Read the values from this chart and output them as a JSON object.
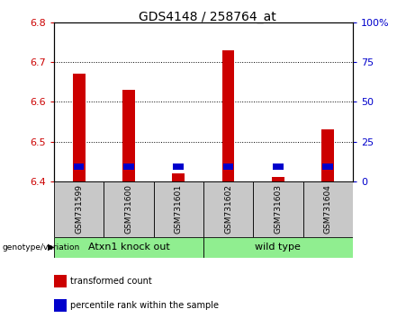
{
  "title": "GDS4148 / 258764_at",
  "samples": [
    "GSM731599",
    "GSM731600",
    "GSM731601",
    "GSM731602",
    "GSM731603",
    "GSM731604"
  ],
  "red_values": [
    6.67,
    6.63,
    6.42,
    6.73,
    6.41,
    6.53
  ],
  "blue_top": [
    6.445,
    6.445,
    6.445,
    6.445,
    6.445,
    6.445
  ],
  "y_min": 6.4,
  "y_max": 6.8,
  "y_ticks": [
    6.4,
    6.5,
    6.6,
    6.7,
    6.8
  ],
  "right_y_ticks": [
    0,
    25,
    50,
    75,
    100
  ],
  "right_y_labels": [
    "0",
    "25",
    "50",
    "75",
    "100%"
  ],
  "groups": [
    {
      "label": "Atxn1 knock out",
      "start": 0,
      "end": 3,
      "color": "#90EE90"
    },
    {
      "label": "wild type",
      "start": 3,
      "end": 6,
      "color": "#90EE90"
    }
  ],
  "group_label": "genotype/variation",
  "legend": [
    {
      "label": "transformed count",
      "color": "#CC0000"
    },
    {
      "label": "percentile rank within the sample",
      "color": "#0000CC"
    }
  ],
  "bar_width": 0.25,
  "red_color": "#CC0000",
  "blue_color": "#0000CC",
  "sample_bg": "#C8C8C8",
  "title_fontsize": 10,
  "blue_bar_height": 0.015
}
